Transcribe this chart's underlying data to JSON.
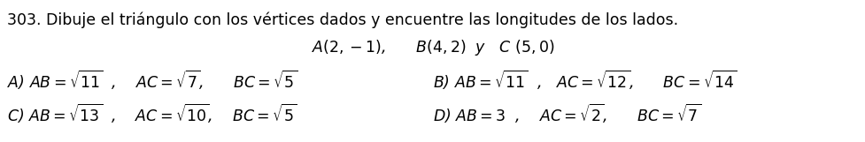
{
  "title": "303. Dibuje el triángulo con los vértices dados y encuentre las longitudes de los lados.",
  "subtitle": "$A(2,-1)$,      $B(4,2)$  $y$   $C$ $(5,0)$",
  "rowA": "A) $AB = \\sqrt{11}$  ,    $AC = \\sqrt{7}$,      $BC = \\sqrt{5}$",
  "rowB": "B) $AB = \\sqrt{11}$  ,   $AC = \\sqrt{12}$,      $BC = \\sqrt{14}$",
  "rowC": "C) $AB = \\sqrt{13}$  ,    $AC = \\sqrt{10}$,    $BC = \\sqrt{5}$",
  "rowD": "D) $AB = 3$  ,    $AC = \\sqrt{2}$,      $BC = \\sqrt{7}$",
  "bg_color": "#ffffff",
  "text_color": "#000000",
  "title_fontsize": 12.5,
  "body_fontsize": 12.5,
  "subtitle_fontsize": 12.5
}
